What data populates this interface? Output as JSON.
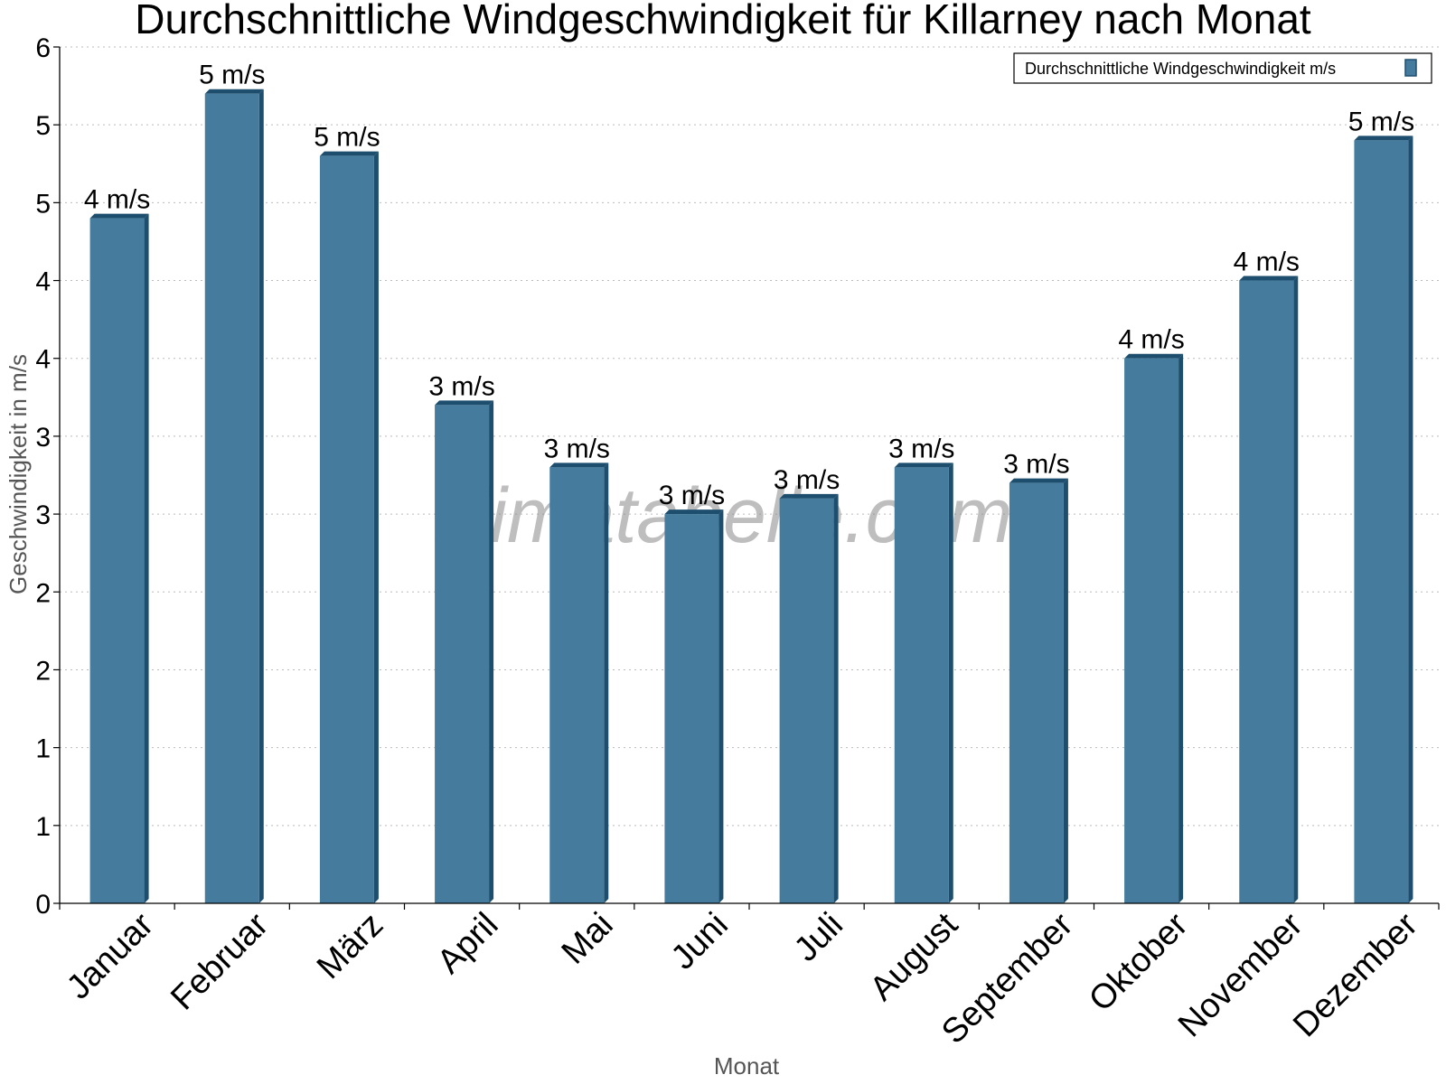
{
  "chart_data": {
    "type": "bar",
    "title": "Durchschnittliche Windgeschwindigkeit für Killarney nach Monat",
    "xlabel": "Monat",
    "ylabel": "Geschwindigkeit in m/s",
    "ylim": [
      0,
      5.5
    ],
    "y_ticks": [
      0,
      0.5,
      1,
      1.5,
      2,
      2.5,
      3,
      3.5,
      4,
      4.5,
      5,
      5.5
    ],
    "y_tick_labels": [
      "0",
      "1",
      "1",
      "2",
      "2",
      "3",
      "3",
      "4",
      "4",
      "5",
      "5",
      "6"
    ],
    "categories": [
      "Januar",
      "Februar",
      "März",
      "April",
      "Mai",
      "Juni",
      "Juli",
      "August",
      "September",
      "Oktober",
      "November",
      "Dezember"
    ],
    "series": [
      {
        "name": "Durchschnittliche Windgeschwindigkeit m/s",
        "color": "#457b9d",
        "values": [
          4.4,
          5.2,
          4.8,
          3.2,
          2.8,
          2.5,
          2.6,
          2.8,
          2.7,
          3.5,
          4.0,
          4.9
        ],
        "labels": [
          "4 m/s",
          "5 m/s",
          "5 m/s",
          "3 m/s",
          "3 m/s",
          "3 m/s",
          "3 m/s",
          "3 m/s",
          "3 m/s",
          "4 m/s",
          "4 m/s",
          "5 m/s"
        ]
      }
    ],
    "grid": true,
    "legend_position": "top-right",
    "watermark": "klimatabelle.com"
  }
}
